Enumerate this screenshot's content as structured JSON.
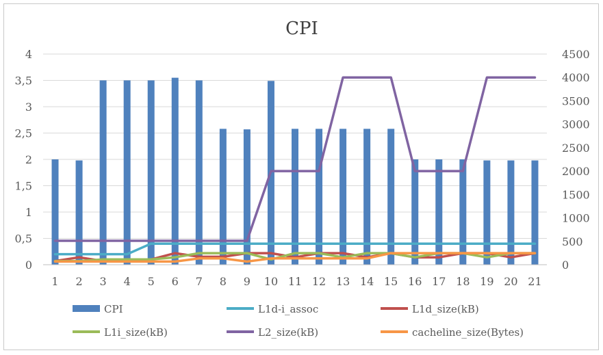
{
  "chart_data": {
    "type": "bar+line",
    "title": "CPI",
    "categories": [
      "1",
      "2",
      "3",
      "4",
      "5",
      "6",
      "7",
      "8",
      "9",
      "10",
      "11",
      "12",
      "13",
      "14",
      "15",
      "16",
      "17",
      "18",
      "19",
      "20",
      "21"
    ],
    "y_left": {
      "range": [
        0,
        4
      ],
      "ticks": [
        "0",
        "0,5",
        "1",
        "1,5",
        "2",
        "2,5",
        "3",
        "3,5",
        "4"
      ]
    },
    "y_right": {
      "range": [
        0,
        4500
      ],
      "ticks": [
        "0",
        "500",
        "1000",
        "1500",
        "2000",
        "2500",
        "3000",
        "3500",
        "4000",
        "4500"
      ]
    },
    "bar_series": {
      "name": "CPI",
      "axis": "left",
      "color": "#4f81bd",
      "values": [
        2.0,
        1.98,
        3.5,
        3.5,
        3.5,
        3.55,
        3.5,
        2.58,
        2.57,
        3.49,
        2.58,
        2.58,
        2.58,
        2.58,
        2.58,
        2.0,
        2.0,
        2.0,
        1.98,
        1.98,
        1.98
      ]
    },
    "line_series": [
      {
        "name": "L1d-i_assoc",
        "axis": "left",
        "color": "#4bacc6",
        "values": [
          0.2,
          0.2,
          0.2,
          0.2,
          0.4,
          0.4,
          0.4,
          0.4,
          0.4,
          0.4,
          0.4,
          0.4,
          0.4,
          0.4,
          0.4,
          0.4,
          0.4,
          0.4,
          0.4,
          0.4,
          0.4
        ]
      },
      {
        "name": "L1d_size(kB)",
        "axis": "left",
        "color": "#c0504d",
        "values": [
          0.07,
          0.14,
          0.07,
          0.07,
          0.1,
          0.22,
          0.15,
          0.15,
          0.22,
          0.22,
          0.14,
          0.22,
          0.22,
          0.14,
          0.22,
          0.14,
          0.14,
          0.22,
          0.22,
          0.14,
          0.22
        ]
      },
      {
        "name": "L1i_size(kB)",
        "axis": "left",
        "color": "#9bbb59",
        "values": [
          0.07,
          0.07,
          0.1,
          0.1,
          0.1,
          0.14,
          0.22,
          0.22,
          0.22,
          0.1,
          0.22,
          0.22,
          0.14,
          0.22,
          0.22,
          0.14,
          0.22,
          0.22,
          0.14,
          0.22,
          0.22
        ]
      },
      {
        "name": "L2_size(kB)",
        "axis": "right",
        "color": "#8064a2",
        "values": [
          512,
          512,
          512,
          512,
          512,
          512,
          512,
          512,
          512,
          2000,
          2000,
          2000,
          4000,
          4000,
          4000,
          2000,
          2000,
          2000,
          4000,
          4000,
          4000
        ]
      },
      {
        "name": "cacheline_size(Bytes)",
        "axis": "left",
        "color": "#f79646",
        "values": [
          0.06,
          0.06,
          0.06,
          0.06,
          0.06,
          0.06,
          0.12,
          0.12,
          0.06,
          0.12,
          0.12,
          0.12,
          0.12,
          0.12,
          0.22,
          0.22,
          0.22,
          0.22,
          0.22,
          0.22,
          0.22
        ]
      }
    ],
    "legend": {
      "placement": "bottom",
      "entries": [
        "CPI",
        "L1d-i_assoc",
        "L1d_size(kB)",
        "L1i_size(kB)",
        "L2_size(kB)",
        "cacheline_size(Bytes)"
      ]
    },
    "grid": true
  }
}
